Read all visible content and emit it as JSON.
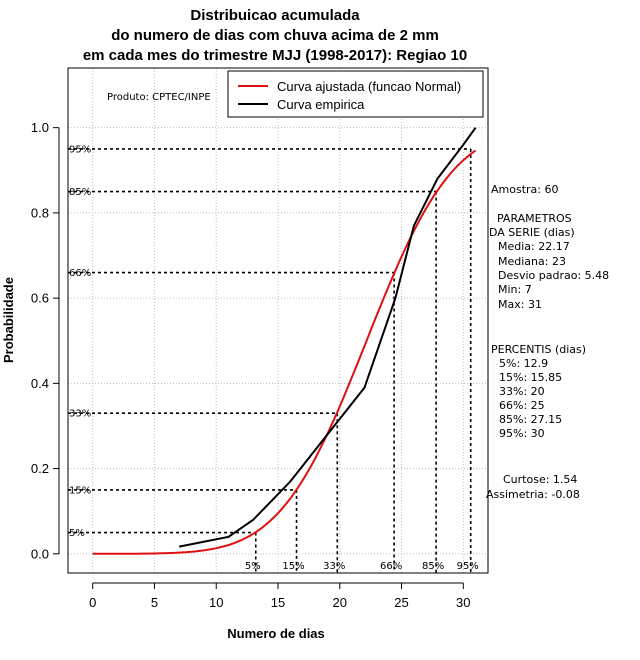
{
  "chart_data": {
    "type": "line",
    "title_lines": [
      "Distribuicao acumulada",
      "do numero de dias com chuva acima de 2 mm",
      "em cada mes do trimestre MJJ (1998-2017): Regiao 10"
    ],
    "xlabel": "Numero de dias",
    "ylabel": "Probabilidade",
    "xlim": [
      -2,
      32
    ],
    "ylim": [
      -0.045,
      1.14
    ],
    "x_ticks": [
      0,
      5,
      10,
      15,
      20,
      25,
      30
    ],
    "y_ticks": [
      0.0,
      0.2,
      0.4,
      0.6,
      0.8,
      1.0
    ],
    "x_tick_labels": [
      "0",
      "5",
      "10",
      "15",
      "20",
      "25",
      "30"
    ],
    "y_tick_labels": [
      "0.0",
      "0.2",
      "0.4",
      "0.6",
      "0.8",
      "1.0"
    ],
    "grid": true,
    "legend_position": "top-right",
    "product_label": "Produto: CPTEC/INPE",
    "series": [
      {
        "name": "Curva ajustada (funcao Normal)",
        "color": "#e01010",
        "kind": "normal_cdf",
        "mean": 22.17,
        "sd": 5.48,
        "x_range": [
          0,
          31
        ]
      },
      {
        "name": "Curva empirica",
        "color": "#000000",
        "kind": "points",
        "x": [
          7,
          11,
          13,
          16,
          19,
          22,
          24.5,
          26,
          27.9,
          30,
          31
        ],
        "y": [
          0.017,
          0.04,
          0.08,
          0.17,
          0.28,
          0.39,
          0.6,
          0.77,
          0.88,
          0.96,
          1.0
        ]
      }
    ],
    "percentile_guides": [
      {
        "label": "5%",
        "prob": 0.05,
        "value": 13.2,
        "ylabel": "5%",
        "xlabel": "5%"
      },
      {
        "label": "15%",
        "prob": 0.15,
        "value": 16.5,
        "ylabel": "15%",
        "xlabel": "15%"
      },
      {
        "label": "33%",
        "prob": 0.33,
        "value": 19.8,
        "ylabel": "33%",
        "xlabel": "33%"
      },
      {
        "label": "66%",
        "prob": 0.66,
        "value": 24.4,
        "ylabel": "66%",
        "xlabel": "66%"
      },
      {
        "label": "85%",
        "prob": 0.85,
        "value": 27.8,
        "ylabel": "85%",
        "xlabel": "85%"
      },
      {
        "label": "95%",
        "prob": 0.95,
        "value": 30.6,
        "ylabel": "95%",
        "xlabel": "95%"
      }
    ],
    "side_panel": {
      "sample": "Amostra: 60",
      "params_title_1": "PARAMETROS",
      "params_title_2": "DA SERIE (dias)",
      "params": [
        "Media: 22.17",
        "Mediana: 23",
        "Desvio padrao: 5.48",
        "Min: 7",
        "Max: 31"
      ],
      "percentiles_title": "PERCENTIS (dias)",
      "percentiles": [
        "5%: 12.9",
        "15%: 15.85",
        "33%: 20",
        "66%: 25",
        "85%: 27.15",
        "95%: 30"
      ],
      "kurtosis": "Curtose: 1.54",
      "skewness": "Assimetria: -0.08"
    }
  }
}
